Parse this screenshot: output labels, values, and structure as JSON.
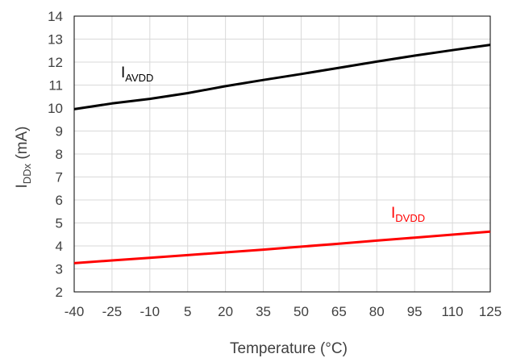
{
  "chart_data": {
    "type": "line",
    "title": "",
    "xlabel": "Temperature (°C)",
    "ylabel": {
      "main": "I",
      "sub": "DDx",
      "unit": " (mA)"
    },
    "x": [
      -40,
      -25,
      -10,
      5,
      20,
      35,
      50,
      65,
      80,
      95,
      110,
      125
    ],
    "x_ticks": [
      "-40",
      "-25",
      "-10",
      "5",
      "20",
      "35",
      "50",
      "65",
      "80",
      "95",
      "110",
      "125"
    ],
    "y_ticks": [
      "2",
      "3",
      "4",
      "5",
      "6",
      "7",
      "8",
      "9",
      "10",
      "11",
      "12",
      "13",
      "14"
    ],
    "xlim": [
      -40,
      125
    ],
    "ylim": [
      2,
      14
    ],
    "grid": true,
    "series": [
      {
        "name": "I",
        "name_sub": "AVDD",
        "color": "#000000",
        "values": [
          9.95,
          10.2,
          10.4,
          10.65,
          10.95,
          11.22,
          11.48,
          11.75,
          12.02,
          12.28,
          12.52,
          12.75
        ]
      },
      {
        "name": "I",
        "name_sub": "DVDD",
        "color": "#ff0000",
        "values": [
          3.25,
          3.37,
          3.48,
          3.6,
          3.72,
          3.84,
          3.97,
          4.1,
          4.23,
          4.36,
          4.49,
          4.62
        ]
      }
    ]
  }
}
